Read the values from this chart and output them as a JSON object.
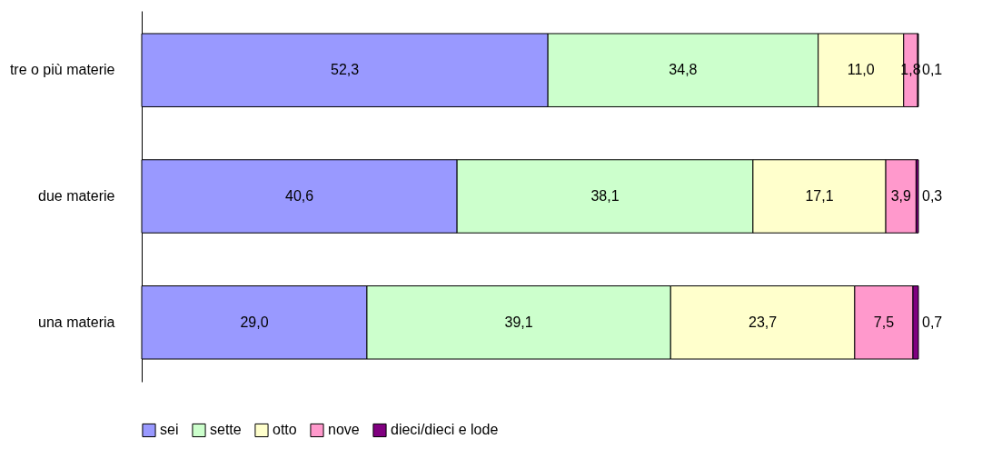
{
  "chart_data": {
    "type": "bar",
    "orientation": "horizontal",
    "stacked": true,
    "legend": "bottom",
    "tick_labels": "y",
    "categories": [
      "tre o più materie",
      "due materie",
      "una materia"
    ],
    "series": [
      {
        "name": "sei",
        "color": "#9999ff",
        "values": [
          52.3,
          40.6,
          29.0
        ],
        "value_labels": [
          "52,3",
          "40,6",
          "29,0"
        ]
      },
      {
        "name": "sette",
        "color": "#ccffcc",
        "values": [
          34.8,
          38.1,
          39.1
        ],
        "value_labels": [
          "34,8",
          "38,1",
          "39,1"
        ]
      },
      {
        "name": "otto",
        "color": "#ffffcc",
        "values": [
          11.0,
          17.1,
          23.7
        ],
        "value_labels": [
          "11,0",
          "17,1",
          "23,7"
        ]
      },
      {
        "name": "nove",
        "color": "#ff99cc",
        "values": [
          1.8,
          3.9,
          7.5
        ],
        "value_labels": [
          "1,8",
          "3,9",
          "7,5"
        ]
      },
      {
        "name": "dieci/dieci e lode",
        "color": "#800080",
        "values": [
          0.1,
          0.3,
          0.7
        ],
        "value_labels": [
          "0,1",
          "0,3",
          "0,7"
        ]
      }
    ]
  }
}
